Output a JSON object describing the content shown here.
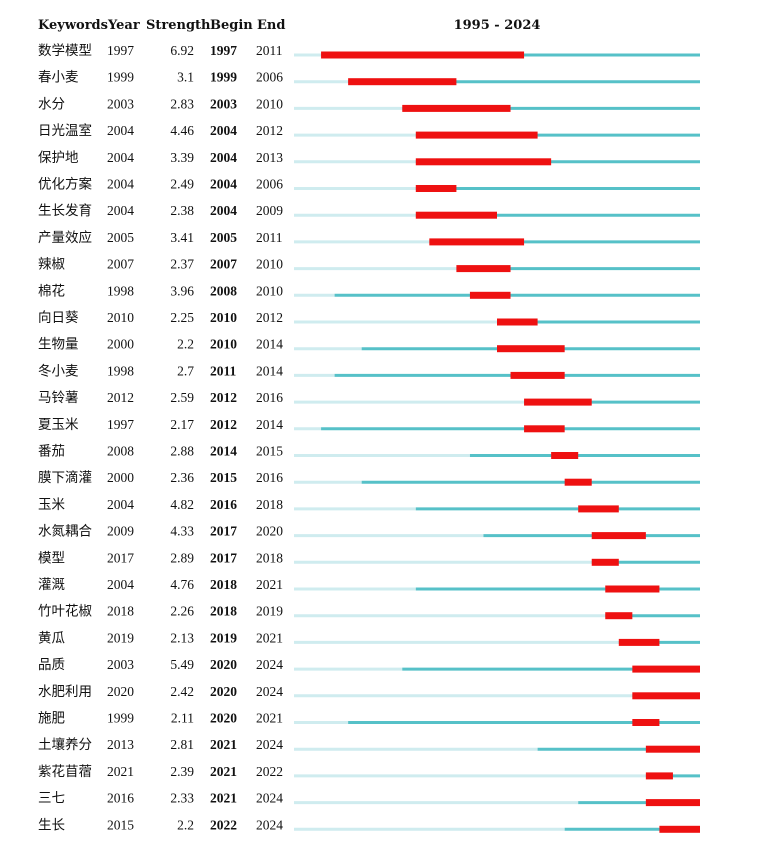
{
  "chart_data": {
    "type": "table",
    "title": "1995 - 2024",
    "columns": [
      "Keywords",
      "Year",
      "Strength",
      "Begin",
      "End"
    ],
    "range": [
      1995,
      2024
    ],
    "colors": {
      "burst": "#ee1111",
      "active": "#56c1c8",
      "inactive": "#cfecef"
    },
    "rows": [
      {
        "keyword": "数学模型",
        "year": "1997",
        "strength": "6.92",
        "begin": "1997",
        "end": "2011"
      },
      {
        "keyword": "春小麦",
        "year": "1999",
        "strength": "3.1",
        "begin": "1999",
        "end": "2006"
      },
      {
        "keyword": "水分",
        "year": "2003",
        "strength": "2.83",
        "begin": "2003",
        "end": "2010"
      },
      {
        "keyword": "日光温室",
        "year": "2004",
        "strength": "4.46",
        "begin": "2004",
        "end": "2012"
      },
      {
        "keyword": "保护地",
        "year": "2004",
        "strength": "3.39",
        "begin": "2004",
        "end": "2013"
      },
      {
        "keyword": "优化方案",
        "year": "2004",
        "strength": "2.49",
        "begin": "2004",
        "end": "2006"
      },
      {
        "keyword": "生长发育",
        "year": "2004",
        "strength": "2.38",
        "begin": "2004",
        "end": "2009"
      },
      {
        "keyword": "产量效应",
        "year": "2005",
        "strength": "3.41",
        "begin": "2005",
        "end": "2011"
      },
      {
        "keyword": "辣椒",
        "year": "2007",
        "strength": "2.37",
        "begin": "2007",
        "end": "2010"
      },
      {
        "keyword": "棉花",
        "year": "1998",
        "strength": "3.96",
        "begin": "2008",
        "end": "2010"
      },
      {
        "keyword": "向日葵",
        "year": "2010",
        "strength": "2.25",
        "begin": "2010",
        "end": "2012"
      },
      {
        "keyword": "生物量",
        "year": "2000",
        "strength": "2.2",
        "begin": "2010",
        "end": "2014"
      },
      {
        "keyword": "冬小麦",
        "year": "1998",
        "strength": "2.7",
        "begin": "2011",
        "end": "2014"
      },
      {
        "keyword": "马铃薯",
        "year": "2012",
        "strength": "2.59",
        "begin": "2012",
        "end": "2016"
      },
      {
        "keyword": "夏玉米",
        "year": "1997",
        "strength": "2.17",
        "begin": "2012",
        "end": "2014"
      },
      {
        "keyword": "番茄",
        "year": "2008",
        "strength": "2.88",
        "begin": "2014",
        "end": "2015"
      },
      {
        "keyword": "膜下滴灌",
        "year": "2000",
        "strength": "2.36",
        "begin": "2015",
        "end": "2016"
      },
      {
        "keyword": "玉米",
        "year": "2004",
        "strength": "4.82",
        "begin": "2016",
        "end": "2018"
      },
      {
        "keyword": "水氮耦合",
        "year": "2009",
        "strength": "4.33",
        "begin": "2017",
        "end": "2020"
      },
      {
        "keyword": "模型",
        "year": "2017",
        "strength": "2.89",
        "begin": "2017",
        "end": "2018"
      },
      {
        "keyword": "灌溉",
        "year": "2004",
        "strength": "4.76",
        "begin": "2018",
        "end": "2021"
      },
      {
        "keyword": "竹叶花椒",
        "year": "2018",
        "strength": "2.26",
        "begin": "2018",
        "end": "2019"
      },
      {
        "keyword": "黄瓜",
        "year": "2019",
        "strength": "2.13",
        "begin": "2019",
        "end": "2021"
      },
      {
        "keyword": "品质",
        "year": "2003",
        "strength": "5.49",
        "begin": "2020",
        "end": "2024"
      },
      {
        "keyword": "水肥利用",
        "year": "2020",
        "strength": "2.42",
        "begin": "2020",
        "end": "2024"
      },
      {
        "keyword": "施肥",
        "year": "1999",
        "strength": "2.11",
        "begin": "2020",
        "end": "2021"
      },
      {
        "keyword": "土壤养分",
        "year": "2013",
        "strength": "2.81",
        "begin": "2021",
        "end": "2024"
      },
      {
        "keyword": "紫花苜蓿",
        "year": "2021",
        "strength": "2.39",
        "begin": "2021",
        "end": "2022"
      },
      {
        "keyword": "三七",
        "year": "2016",
        "strength": "2.33",
        "begin": "2021",
        "end": "2024"
      },
      {
        "keyword": "生长",
        "year": "2015",
        "strength": "2.2",
        "begin": "2022",
        "end": "2024"
      }
    ]
  }
}
